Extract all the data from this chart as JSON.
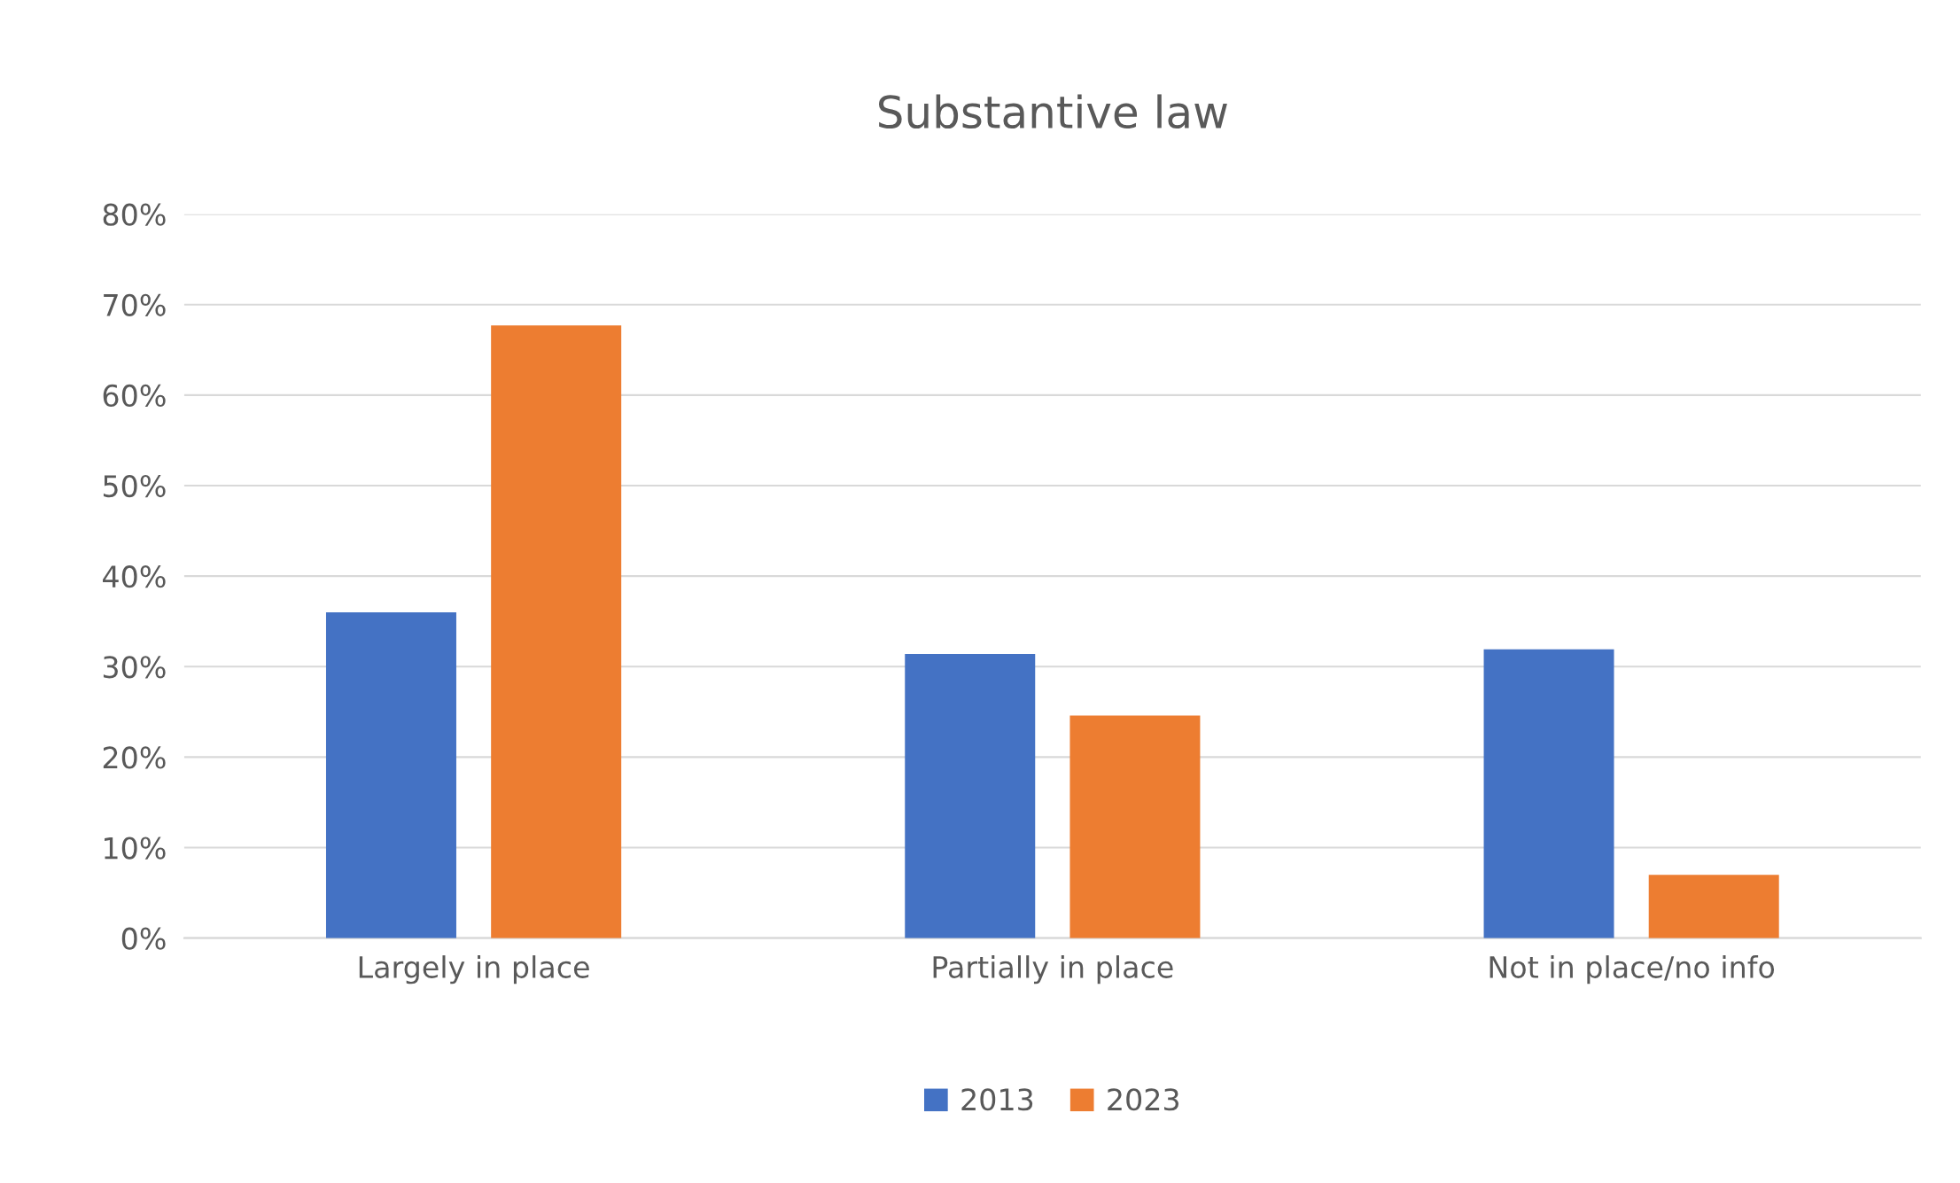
{
  "chart_data": {
    "type": "bar",
    "title": "Substantive law",
    "categories": [
      "Largely in place",
      "Partially in place",
      "Not in place/no info"
    ],
    "series": [
      {
        "name": "2013",
        "color": "#4472c4",
        "values": [
          36,
          31.4,
          31.9
        ]
      },
      {
        "name": "2023",
        "color": "#ed7d31",
        "values": [
          67.7,
          24.6,
          7
        ]
      }
    ],
    "ylim": [
      0,
      80
    ],
    "yticks": [
      {
        "value": 0,
        "label": "0%"
      },
      {
        "value": 10,
        "label": "10%"
      },
      {
        "value": 20,
        "label": "20%"
      },
      {
        "value": 30,
        "label": "30%"
      },
      {
        "value": 40,
        "label": "40%"
      },
      {
        "value": 50,
        "label": "50%"
      },
      {
        "value": 60,
        "label": "60%"
      },
      {
        "value": 70,
        "label": "70%"
      },
      {
        "value": 80,
        "label": "80%"
      }
    ],
    "grid": "y",
    "legend": "bottom"
  }
}
